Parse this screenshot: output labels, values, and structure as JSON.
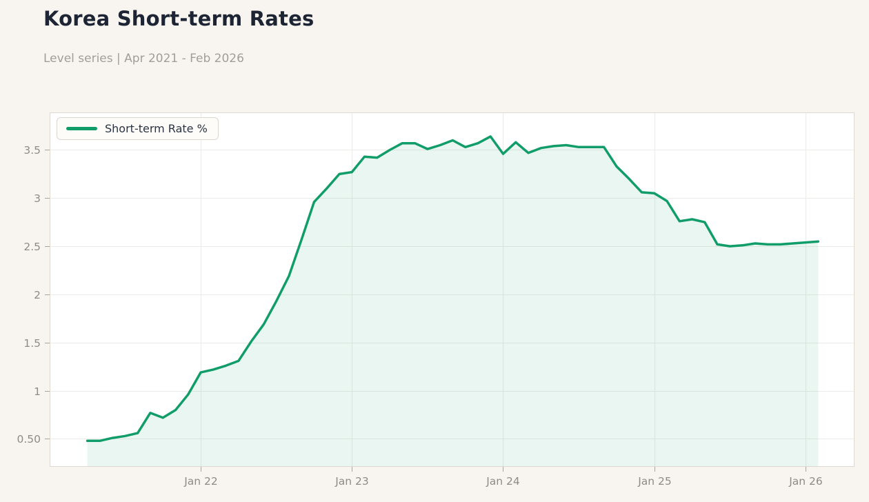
{
  "header": {
    "title": "Korea Short-term Rates",
    "subtitle": "Level series | Apr 2021 - Feb 2026"
  },
  "legend": {
    "label": "Short-term Rate %"
  },
  "colors": {
    "line": "#119d69",
    "area_fill": "rgba(17,157,105,0.09)",
    "page_bg": "#f8f5f0",
    "plot_bg": "#ffffff",
    "grid": "#ebebe7",
    "plot_border": "#ddd9d0",
    "axis_text": "#8e8b86",
    "tick_mark": "#a8a49e",
    "title_text": "#1d2433",
    "subtitle_text": "#a19e99",
    "legend_text": "#2a3342"
  },
  "chart_data": {
    "type": "area",
    "title": "Korea Short-term Rates",
    "subtitle": "Level series | Apr 2021 - Feb 2026",
    "series_name": "Short-term Rate %",
    "xlabel": "",
    "ylabel": "",
    "grid": true,
    "legend_position": "top-left",
    "x": [
      "Apr 2021",
      "May 2021",
      "Jun 2021",
      "Jul 2021",
      "Aug 2021",
      "Sep 2021",
      "Oct 2021",
      "Nov 2021",
      "Dec 2021",
      "Jan 2022",
      "Feb 2022",
      "Mar 2022",
      "Apr 2022",
      "May 2022",
      "Jun 2022",
      "Jul 2022",
      "Aug 2022",
      "Sep 2022",
      "Oct 2022",
      "Nov 2022",
      "Dec 2022",
      "Jan 2023",
      "Feb 2023",
      "Mar 2023",
      "Apr 2023",
      "May 2023",
      "Jun 2023",
      "Jul 2023",
      "Aug 2023",
      "Sep 2023",
      "Oct 2023",
      "Nov 2023",
      "Dec 2023",
      "Jan 2024",
      "Feb 2024",
      "Mar 2024",
      "Apr 2024",
      "May 2024",
      "Jun 2024",
      "Jul 2024",
      "Aug 2024",
      "Sep 2024",
      "Oct 2024",
      "Nov 2024",
      "Dec 2024",
      "Jan 2025",
      "Feb 2025",
      "Mar 2025",
      "Apr 2025",
      "May 2025",
      "Jun 2025",
      "Jul 2025",
      "Aug 2025",
      "Sep 2025",
      "Oct 2025",
      "Nov 2025",
      "Dec 2025",
      "Jan 2026",
      "Feb 2026"
    ],
    "values": [
      0.48,
      0.48,
      0.51,
      0.53,
      0.56,
      0.77,
      0.72,
      0.8,
      0.96,
      1.19,
      1.22,
      1.26,
      1.31,
      1.51,
      1.69,
      1.93,
      2.19,
      2.57,
      2.96,
      3.1,
      3.25,
      3.27,
      3.43,
      3.42,
      3.5,
      3.57,
      3.57,
      3.51,
      3.55,
      3.6,
      3.53,
      3.57,
      3.64,
      3.46,
      3.58,
      3.47,
      3.52,
      3.54,
      3.55,
      3.53,
      3.53,
      3.53,
      3.33,
      3.2,
      3.06,
      3.05,
      2.97,
      2.76,
      2.78,
      2.75,
      2.52,
      2.5,
      2.51,
      2.53,
      2.52,
      2.52,
      2.53,
      2.54,
      2.55
    ],
    "x_tick_labels": [
      "Jan 22",
      "Jan 23",
      "Jan 24",
      "Jan 25",
      "Jan 26"
    ],
    "x_tick_indices": [
      9,
      21,
      33,
      45,
      57
    ],
    "y_ticks": [
      0.5,
      1,
      1.5,
      2,
      2.5,
      3,
      3.5
    ],
    "y_tick_labels": [
      "0.50",
      "1",
      "1.5",
      "2",
      "2.5",
      "3",
      "3.5"
    ],
    "ylim": [
      0.21,
      3.89
    ]
  }
}
